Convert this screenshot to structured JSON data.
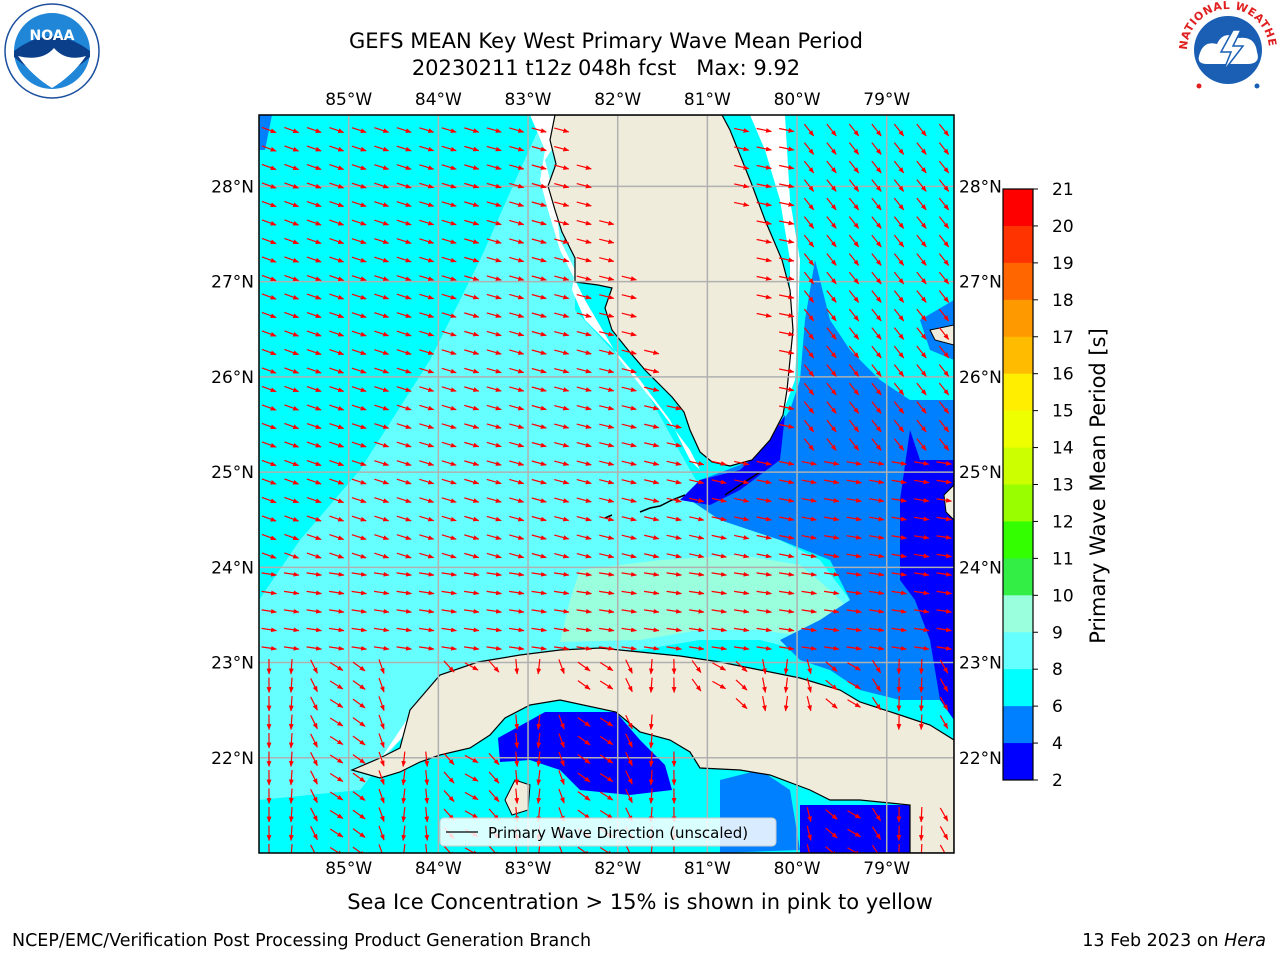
{
  "title": {
    "line1": "GEFS MEAN Key West Primary Wave Mean Period",
    "line2": "20230211 t12z 048h fcst   Max: 9.92"
  },
  "map": {
    "lon_labels": [
      "85°W",
      "84°W",
      "83°W",
      "82°W",
      "81°W",
      "80°W",
      "79°W"
    ],
    "lon_values": [
      -85,
      -84,
      -83,
      -82,
      -81,
      -80,
      -79
    ],
    "lat_labels": [
      "28°N",
      "27°N",
      "26°N",
      "25°N",
      "24°N",
      "23°N",
      "22°N"
    ],
    "lat_values": [
      28,
      27,
      26,
      25,
      24,
      23,
      22
    ],
    "extent": {
      "lon_min": -86.0,
      "lon_max": -78.25,
      "lat_min": 21.0,
      "lat_max": 28.75
    },
    "legend_label": "Primary Wave Direction (unscaled)",
    "colors": {
      "land": "#efecdc",
      "arrows": "#ff0000",
      "grid": "#b0b0b0",
      "coast": "#000000"
    }
  },
  "colorbar": {
    "label": "Primary Wave Mean Period [s]",
    "ticks": [
      "21",
      "20",
      "19",
      "18",
      "17",
      "16",
      "15",
      "14",
      "13",
      "12",
      "11",
      "10",
      "9",
      "8",
      "6",
      "4",
      "2"
    ],
    "colors": [
      "#ff0000",
      "#ff3300",
      "#ff6600",
      "#ff9900",
      "#ffbb00",
      "#ffee00",
      "#eeff00",
      "#ccff00",
      "#99ff00",
      "#33ff00",
      "#33ee44",
      "#99ffdd",
      "#66ffff",
      "#00ffff",
      "#0080ff",
      "#0000ff"
    ]
  },
  "footer": {
    "note": "Sea Ice Concentration > 15% is shown in pink to yellow",
    "left": "NCEP/EMC/Verification Post Processing Product Generation Branch",
    "right_date": "13 Feb 2023 on ",
    "right_host": "Hera"
  },
  "logos": {
    "left": "NOAA",
    "right": "NATIONAL WEATHER SERVICE"
  }
}
